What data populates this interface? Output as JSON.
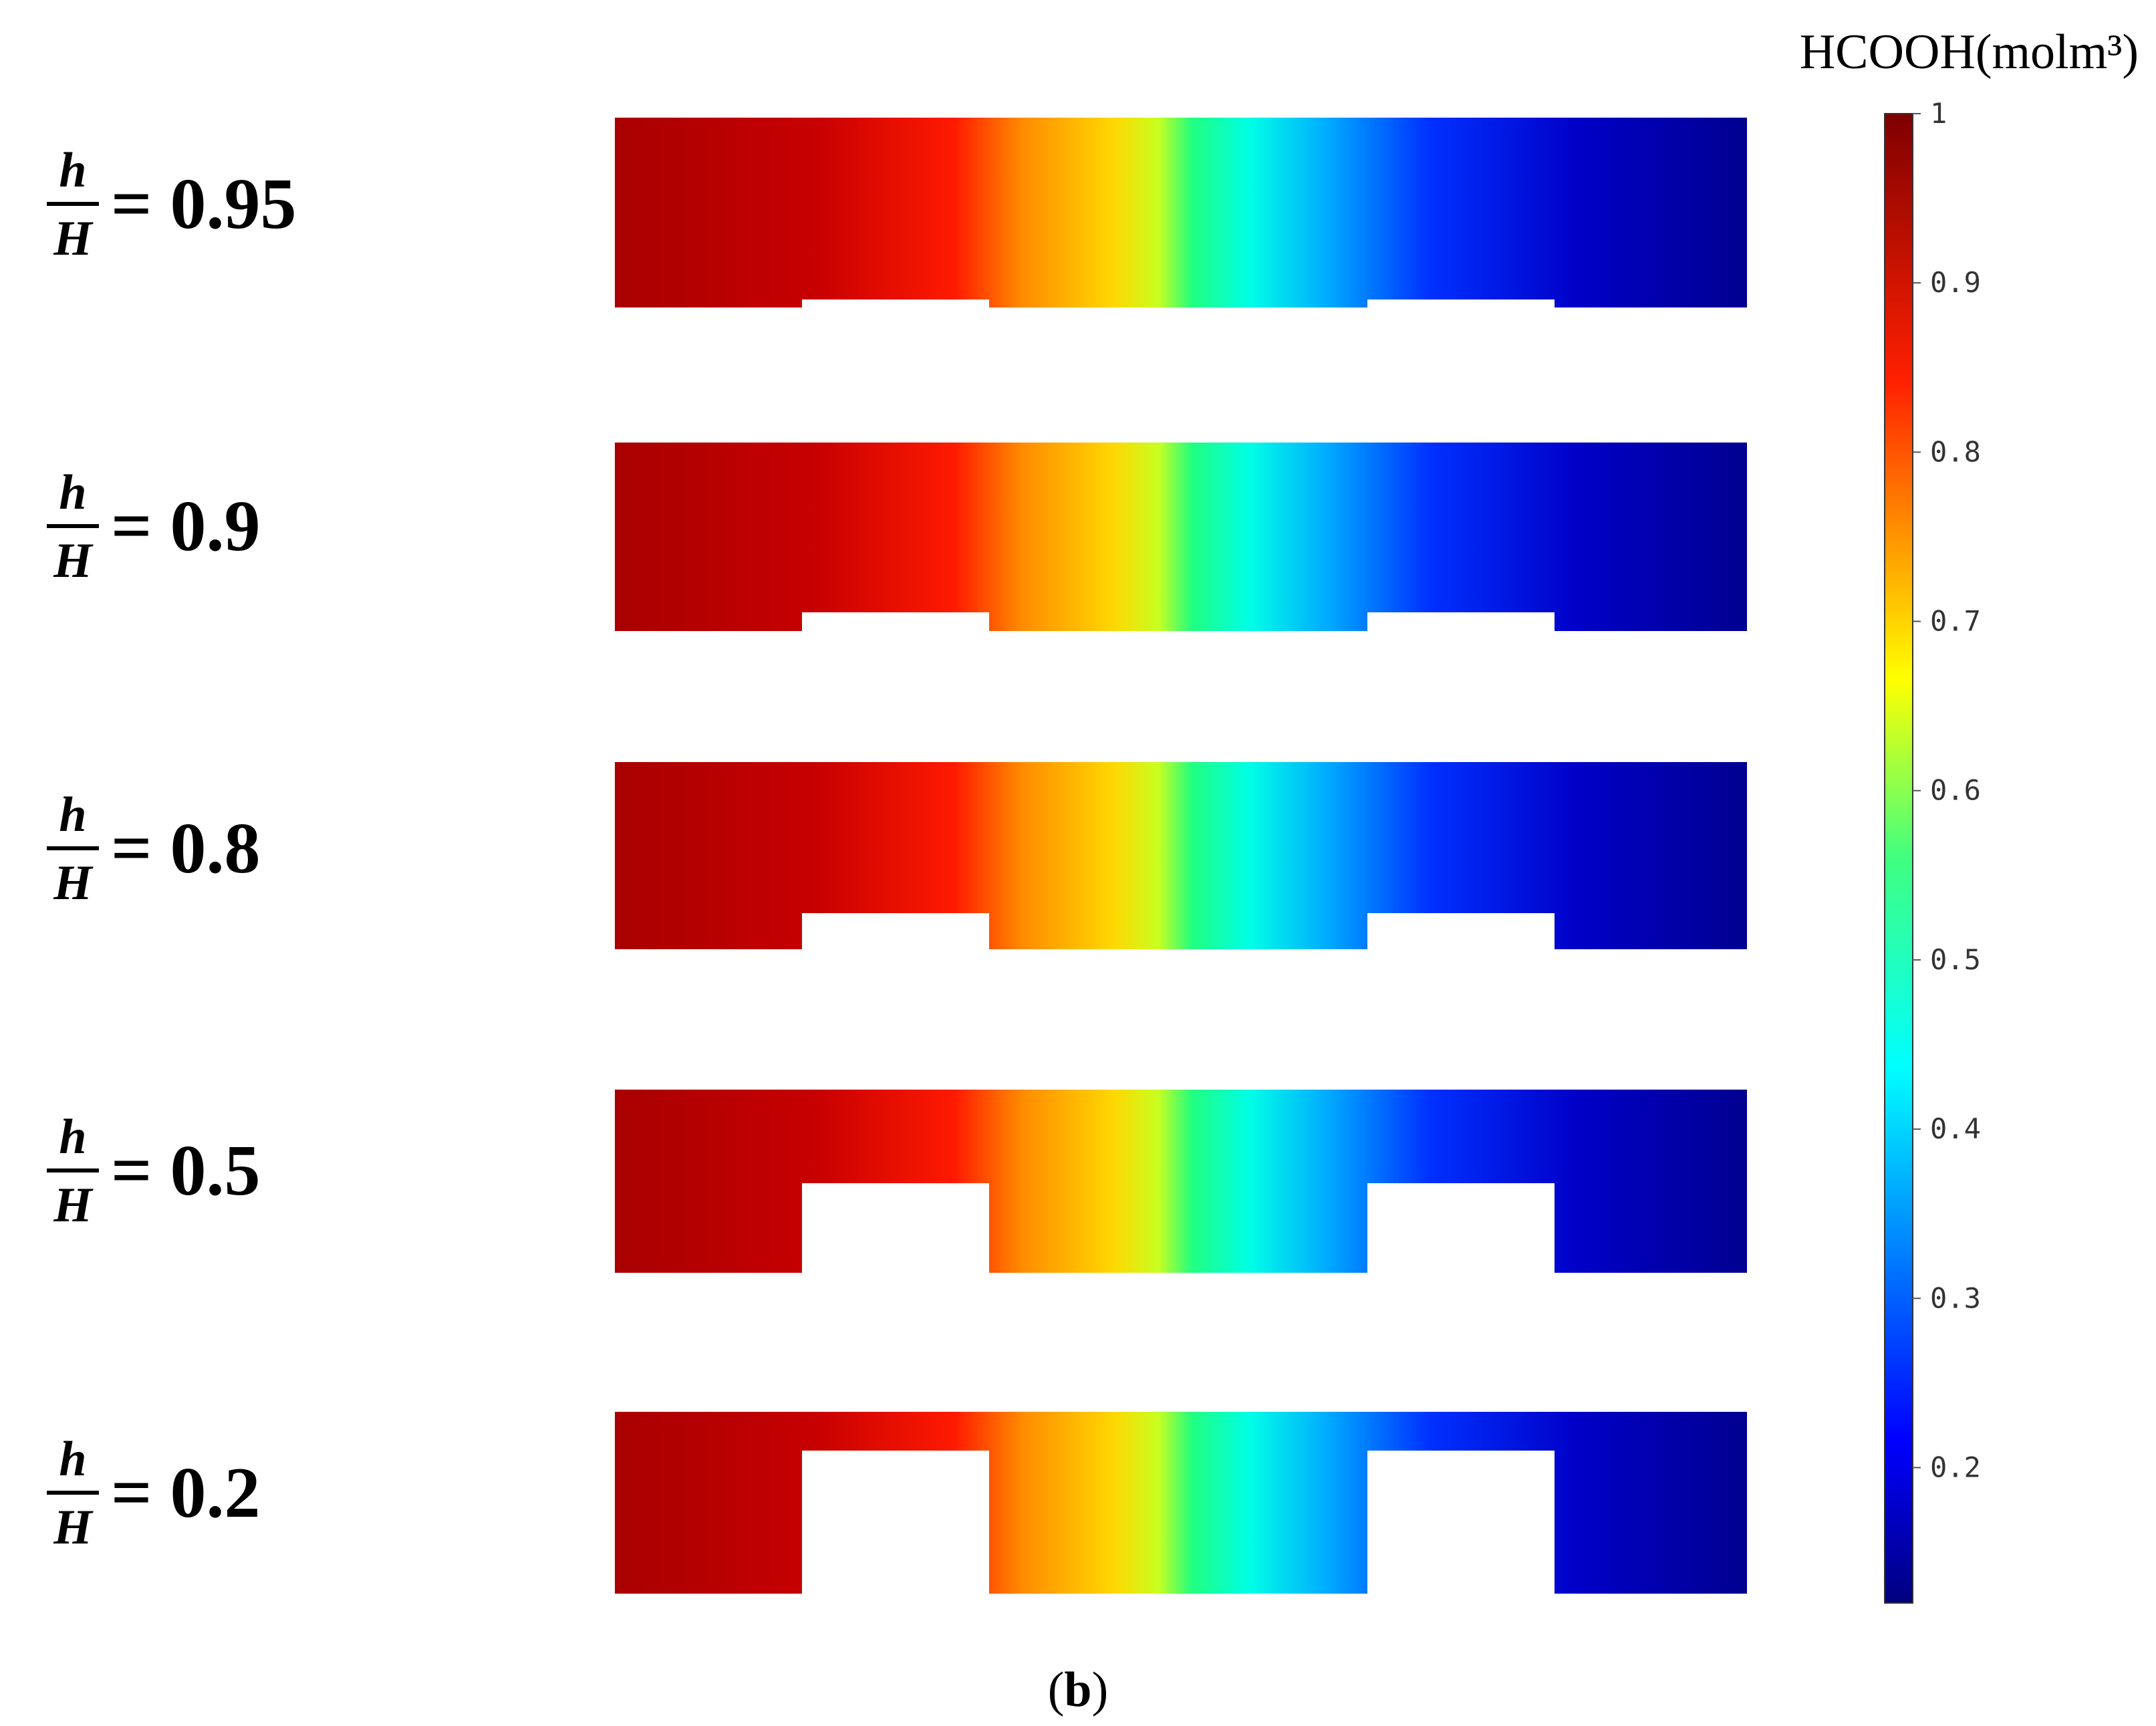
{
  "ratio_symbol": {
    "numerator": "h",
    "denominator": "H"
  },
  "panels": [
    {
      "ratio_label": "= 0.95"
    },
    {
      "ratio_label": "= 0.9"
    },
    {
      "ratio_label": "= 0.8"
    },
    {
      "ratio_label": "= 0.5"
    },
    {
      "ratio_label": "= 0.2"
    }
  ],
  "colorbar": {
    "title": "HCOOH(molm³)",
    "range": [
      0.12,
      1.0
    ],
    "colormap": "jet",
    "ticks": [
      "1",
      "0.9",
      "0.8",
      "0.7",
      "0.6",
      "0.5",
      "0.4",
      "0.3",
      "0.2"
    ]
  },
  "caption": {
    "open": "(",
    "letter": "b",
    "close": ")"
  }
}
